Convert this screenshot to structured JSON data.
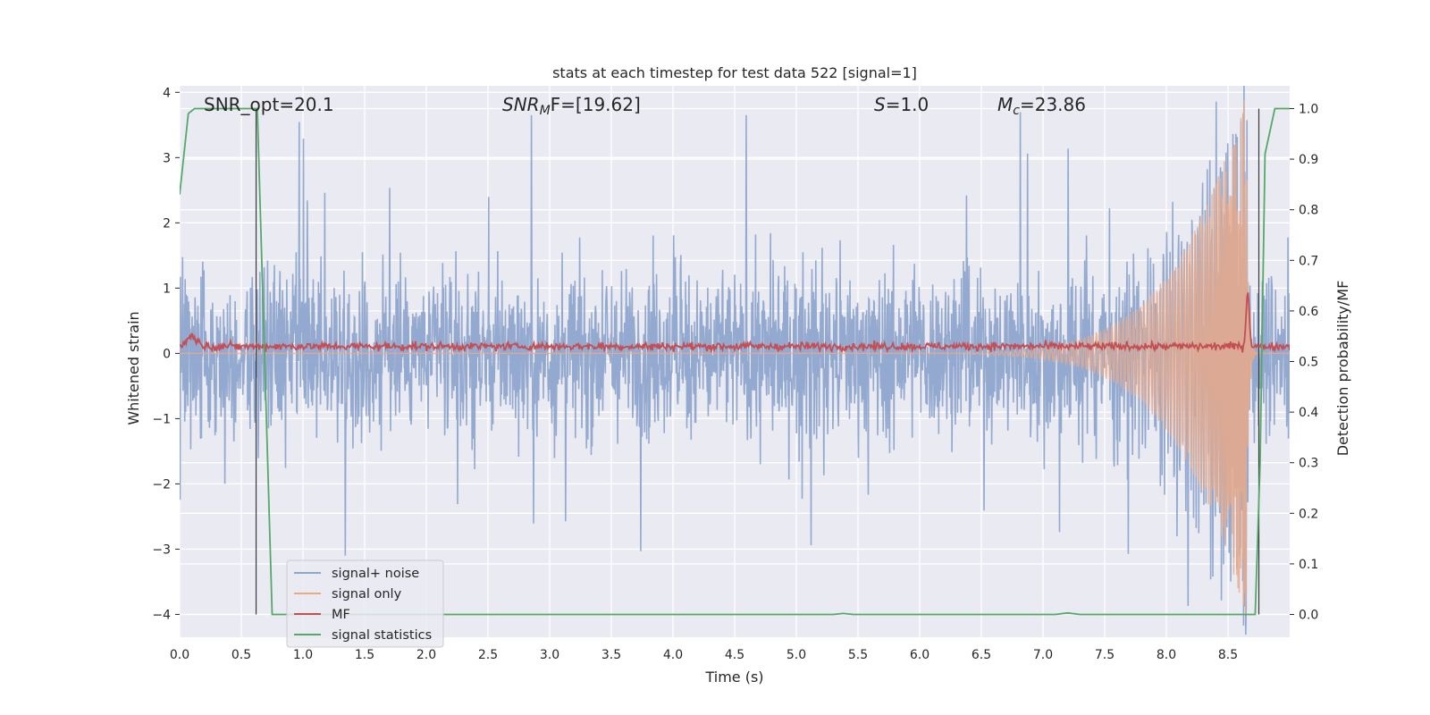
{
  "chart_data": {
    "type": "line",
    "title": "stats at each timestep for test data 522 [signal=1]",
    "xlabel": "Time (s)",
    "ylabel": "Whitened strain",
    "y2label": "Detection probability/MF",
    "xlim": [
      0.0,
      9.0
    ],
    "ylim": [
      -4.35,
      4.1
    ],
    "y2lim": [
      -0.045,
      1.045
    ],
    "x_ticks": [
      "0.0",
      "0.5",
      "1.0",
      "1.5",
      "2.0",
      "2.5",
      "3.0",
      "3.5",
      "4.0",
      "4.5",
      "5.0",
      "5.5",
      "6.0",
      "6.5",
      "7.0",
      "7.5",
      "8.0",
      "8.5"
    ],
    "y_ticks": [
      "4",
      "3",
      "2",
      "1",
      "0",
      "−1",
      "−2",
      "−3",
      "−4"
    ],
    "y2_ticks": [
      "1.0",
      "0.9",
      "0.8",
      "0.7",
      "0.6",
      "0.5",
      "0.4",
      "0.3",
      "0.2",
      "0.1",
      "0.0"
    ],
    "grid": true,
    "legend_position": "lower-left",
    "annotations": {
      "snr_opt": "SNR_opt=20.1",
      "snr_mf_base": "SNR",
      "snr_mf_sub": "M",
      "snr_mf_rest": "F=[19.62]",
      "s_var": "S",
      "s_rest": "=1.0",
      "mc_var": "M",
      "mc_sub": "c",
      "mc_rest": "=23.86"
    },
    "markers": {
      "vline_1_x": 0.62,
      "vline_2_x": 8.75
    },
    "series": [
      {
        "name": "signal+ noise",
        "color": "#8fa5cc",
        "noise_envelope": 1.35,
        "peak_range": [
          -3.1,
          3.65
        ]
      },
      {
        "name": "signal only",
        "color": "#e8a98a",
        "chirp_start_x": 5.2,
        "merger_x": 8.65,
        "peak_amplitude": 3.6
      },
      {
        "name": "MF",
        "color": "#c44e52",
        "baseline": 0.53,
        "peak_x": 8.66,
        "peak_value": 0.64,
        "early_bump_x": 0.1,
        "early_bump_value": 0.55
      },
      {
        "name": "signal statistics",
        "color": "#55a868",
        "x": [
          0.0,
          0.07,
          0.12,
          0.6,
          0.63,
          0.75,
          5.3,
          5.38,
          5.46,
          7.1,
          7.2,
          7.3,
          8.72,
          8.76,
          8.8,
          8.88,
          8.95,
          9.0
        ],
        "y": [
          0.83,
          0.99,
          1.0,
          1.0,
          1.0,
          0.0,
          0.0,
          0.002,
          0.0,
          0.0,
          0.003,
          0.0,
          0.0,
          0.3,
          0.91,
          1.0,
          1.0,
          1.0
        ]
      }
    ]
  }
}
